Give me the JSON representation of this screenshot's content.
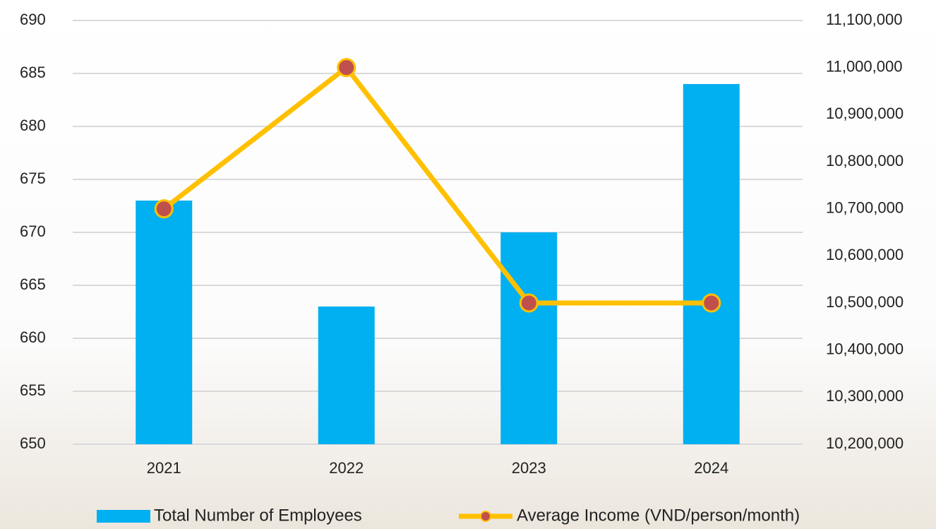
{
  "chart_data": {
    "type": "bar_line",
    "categories": [
      "2021",
      "2022",
      "2023",
      "2024"
    ],
    "series": [
      {
        "name": "Total Number of Employees",
        "color": "#00b0f0",
        "type": "bar",
        "values": [
          673,
          663,
          670,
          684
        ]
      },
      {
        "name": "Average Income (VND/person/month)",
        "color": "#ffc000",
        "marker_color": "#c0504d",
        "type": "line",
        "axis": "y2",
        "values": [
          10700000,
          11000000,
          10500000,
          10500000
        ]
      }
    ],
    "ylim": [
      650,
      690
    ],
    "yticks": [
      650,
      655,
      660,
      665,
      670,
      675,
      680,
      685,
      690
    ],
    "y2lim": [
      10200000,
      11100000
    ],
    "y2ticks": [
      {
        "value": 10200000,
        "label": "10,200,000"
      },
      {
        "value": 10300000,
        "label": "10,300,000"
      },
      {
        "value": 10400000,
        "label": "10,400,000"
      },
      {
        "value": 10500000,
        "label": "10,500,000"
      },
      {
        "value": 10600000,
        "label": "10,600,000"
      },
      {
        "value": 10700000,
        "label": "10,700,000"
      },
      {
        "value": 10800000,
        "label": "10,800,000"
      },
      {
        "value": 10900000,
        "label": "10,900,000"
      },
      {
        "value": 11000000,
        "label": "11,000,000"
      },
      {
        "value": 11100000,
        "label": "11,100,000"
      }
    ],
    "grid": true,
    "legend": "bottom"
  }
}
